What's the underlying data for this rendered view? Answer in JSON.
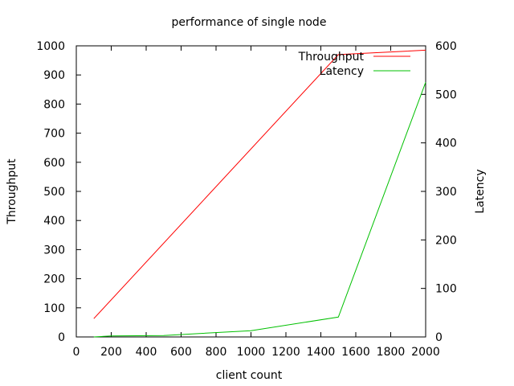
{
  "chart_data": {
    "type": "line",
    "title": "performance of single node",
    "xlabel": "client count",
    "ylabel": "Throughput",
    "y2label": "Latency",
    "xlim": [
      0,
      2000
    ],
    "ylim": [
      0,
      1000
    ],
    "y2lim": [
      0,
      600
    ],
    "xticks": [
      0,
      200,
      400,
      600,
      800,
      1000,
      1200,
      1400,
      1600,
      1800,
      2000
    ],
    "yticks": [
      0,
      100,
      200,
      300,
      400,
      500,
      600,
      700,
      800,
      900,
      1000
    ],
    "y2ticks": [
      0,
      100,
      200,
      300,
      400,
      500,
      600
    ],
    "grid": false,
    "legend_position": "top-right",
    "series": [
      {
        "name": "Throughput",
        "axis": "y",
        "color": "#ff0000",
        "x": [
          100,
          1500,
          2000
        ],
        "values": [
          63,
          970,
          985
        ]
      },
      {
        "name": "Latency",
        "axis": "y2",
        "color": "#00c000",
        "x": [
          100,
          200,
          500,
          1000,
          1500,
          2000
        ],
        "values": [
          0,
          2,
          3,
          13,
          41,
          525
        ]
      }
    ]
  }
}
